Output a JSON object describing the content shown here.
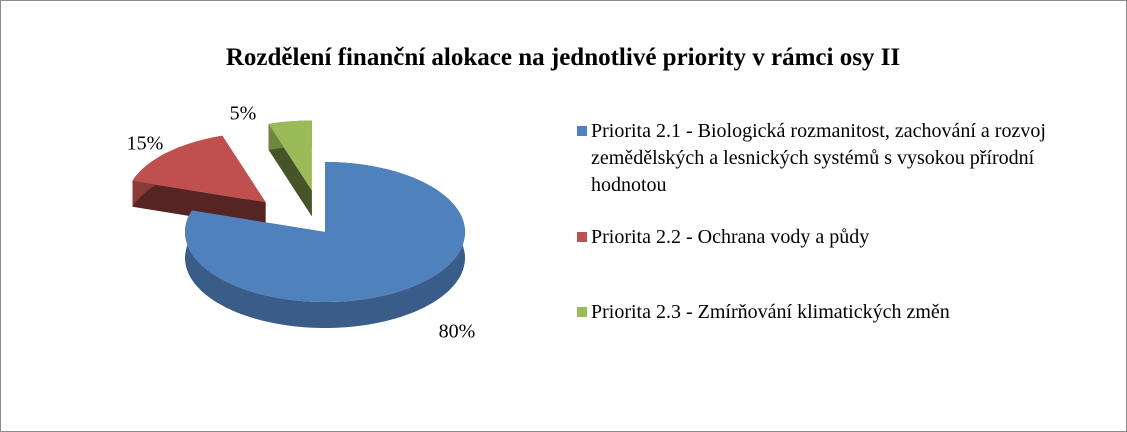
{
  "chart_data": {
    "type": "pie3d",
    "title": "Rozdělení finanční alokace na jednotlivé priority v rámci osy II",
    "categories": [
      "Priorita 2.1 - Biologická rozmanitost, zachování a rozvoj zemědělských a lesnických systémů s vysokou přírodní hodnotou",
      "Priorita 2.2 - Ochrana vody a půdy",
      "Priorita 2.3 - Zmírňování klimatických změn"
    ],
    "values": [
      80,
      15,
      5
    ],
    "value_labels": [
      "80%",
      "15%",
      "5%"
    ],
    "colors": [
      "#4f81bd",
      "#c0504d",
      "#9bbb59"
    ],
    "legend": "right"
  }
}
